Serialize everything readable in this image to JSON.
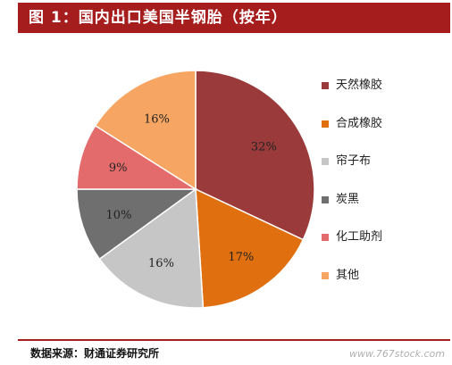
{
  "title": "图 1：国内出口美国半钢胎（按年）",
  "chart_data": {
    "type": "pie",
    "title": "图 1：国内出口美国半钢胎（按年）",
    "slices": [
      {
        "label": "天然橡胶",
        "value": 32,
        "display": "32%",
        "color": "#9b3a3a"
      },
      {
        "label": "合成橡胶",
        "value": 17,
        "display": "17%",
        "color": "#e0700f"
      },
      {
        "label": "帘子布",
        "value": 16,
        "display": "16%",
        "color": "#c6c6c6"
      },
      {
        "label": "炭黑",
        "value": 10,
        "display": "10%",
        "color": "#6f6f6f"
      },
      {
        "label": "化工助剂",
        "value": 9,
        "display": "9%",
        "color": "#e36b6b"
      },
      {
        "label": "其他",
        "value": 16,
        "display": "16%",
        "color": "#f6a562"
      }
    ],
    "legend_position": "right",
    "start_angle": "12 o'clock",
    "direction": "clockwise"
  },
  "footer": {
    "source": "数据来源：财通证券研究所",
    "watermark": "www.767stock.com"
  }
}
